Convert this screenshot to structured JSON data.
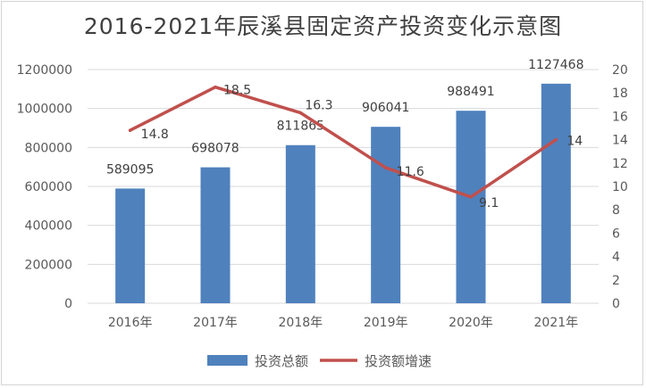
{
  "chart_data": {
    "type": "bar",
    "title": "2016-2021年辰溪县固定资产投资变化示意图",
    "categories": [
      "2016年",
      "2017年",
      "2018年",
      "2019年",
      "2020年",
      "2021年"
    ],
    "series": [
      {
        "name": "投资总额",
        "type": "bar",
        "axis": "left",
        "color": "#4f81bd",
        "values": [
          589095,
          698078,
          811865,
          906041,
          988491,
          1127468
        ]
      },
      {
        "name": "投资额增速",
        "type": "line",
        "axis": "right",
        "color": "#c0504d",
        "values": [
          14.8,
          18.5,
          16.3,
          11.6,
          9.1,
          14
        ]
      }
    ],
    "y_left": {
      "min": 0,
      "max": 1200000,
      "step": 200000,
      "ticks": [
        "0",
        "200000",
        "400000",
        "600000",
        "800000",
        "1000000",
        "1200000"
      ]
    },
    "y_right": {
      "min": 0,
      "max": 20,
      "step": 2,
      "ticks": [
        "0",
        "2",
        "4",
        "6",
        "8",
        "10",
        "12",
        "14",
        "16",
        "18",
        "20"
      ]
    },
    "bar_labels": [
      "589095",
      "698078",
      "811865",
      "906041",
      "988491",
      "1127468"
    ],
    "line_labels": [
      "14.8",
      "18.5",
      "16.3",
      "11.6",
      "9.1",
      "14"
    ],
    "grid": true,
    "legend_position": "bottom"
  }
}
